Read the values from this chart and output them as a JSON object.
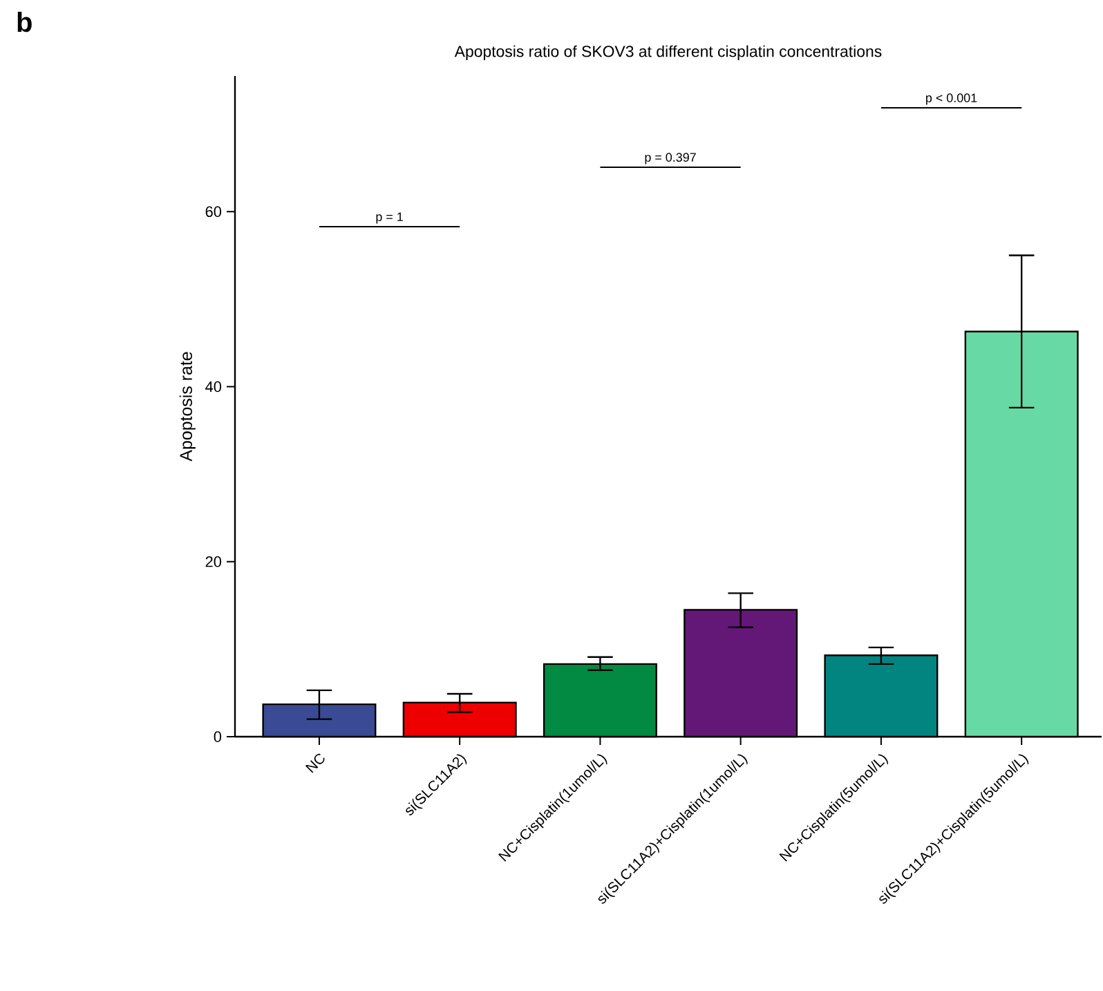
{
  "chart_data": {
    "type": "bar",
    "title": "Apoptosis ratio of SKOV3 at different cisplatin concentrations",
    "ylabel": "Apoptosis rate",
    "categories": [
      "NC",
      "si(SLC11A2)",
      "NC+Cisplatin(1umol/L)",
      "si(SLC11A2)+Cisplatin(1umol/L)",
      "NC+Cisplatin(5umol/L)",
      "si(SLC11A2)+Cisplatin(5umol/L)"
    ],
    "values": [
      3.7,
      3.9,
      8.3,
      14.5,
      9.3,
      46.3
    ],
    "errors": [
      [
        2.0,
        5.3
      ],
      [
        2.8,
        4.9
      ],
      [
        7.6,
        9.1
      ],
      [
        12.5,
        16.4
      ],
      [
        8.3,
        10.2
      ],
      [
        37.6,
        55.0
      ]
    ],
    "colors": [
      "#3b4a94",
      "#ee0000",
      "#038a42",
      "#631878",
      "#028580",
      "#67d9a5"
    ],
    "ylim": [
      0,
      75.5
    ],
    "yticks": [
      0,
      20,
      40,
      60
    ],
    "grid": false,
    "annotations": [
      "b",
      "p = 1",
      "p = 0.397",
      "p < 0.001"
    ]
  }
}
